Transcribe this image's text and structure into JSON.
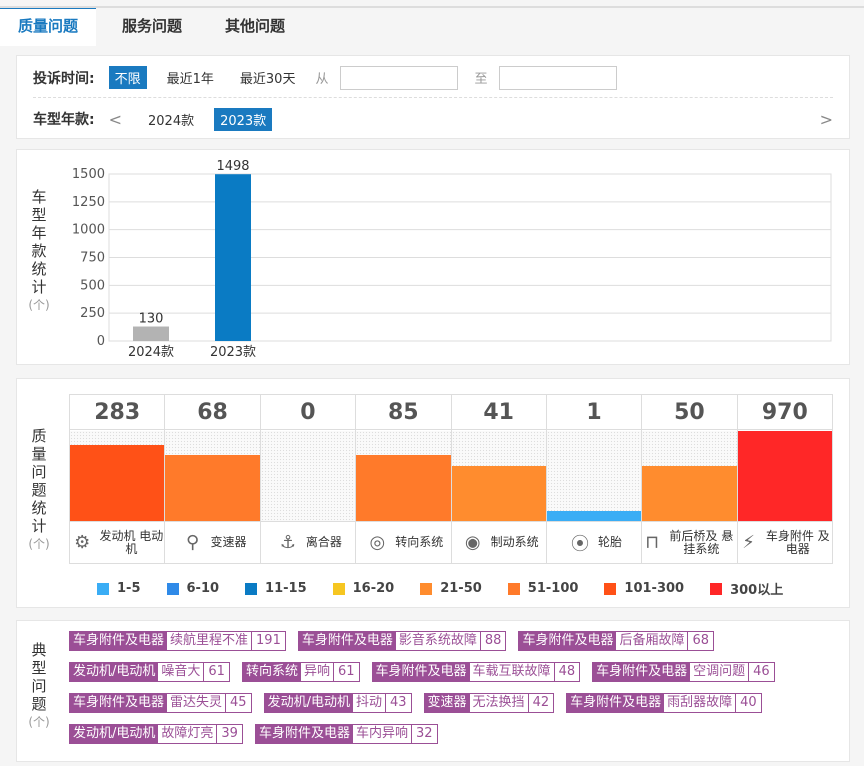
{
  "tabs": [
    "质量问题",
    "服务问题",
    "其他问题"
  ],
  "filter": {
    "time_label": "投诉时间:",
    "time_options": [
      "不限",
      "最近1年",
      "最近30天"
    ],
    "from_label": "从",
    "to_label": "至",
    "from_value": "",
    "to_value": "",
    "year_label": "车型年款:",
    "prev_arrow": "<",
    "next_arrow": ">",
    "years": [
      "2024款",
      "2023款"
    ]
  },
  "year_stats": {
    "label": [
      "车",
      "型",
      "年",
      "款",
      "统",
      "计"
    ],
    "unit": "(个)"
  },
  "chart_data": {
    "type": "bar",
    "categories": [
      "2024款",
      "2023款"
    ],
    "values": [
      130,
      1498
    ],
    "ylim": [
      0,
      1500
    ],
    "yticks": [
      0,
      250,
      500,
      750,
      1000,
      1250,
      1500
    ],
    "colors": [
      "#b3b3b3",
      "#0a7bc4"
    ]
  },
  "quality": {
    "label": [
      "质",
      "量",
      "问",
      "题",
      "统",
      "计"
    ],
    "unit": "(个)",
    "items": [
      {
        "count": "283",
        "name": "发动机 电动机",
        "icon": "engine-icon",
        "glyph": "⚙",
        "level": 0.85,
        "color": "#ff5117"
      },
      {
        "count": "68",
        "name": "变速器",
        "icon": "gearbox-icon",
        "glyph": "⚲",
        "level": 0.73,
        "color": "#ff7a2a"
      },
      {
        "count": "0",
        "name": "离合器",
        "icon": "clutch-icon",
        "glyph": "⚓",
        "level": 0,
        "color": "#ff7a2a"
      },
      {
        "count": "85",
        "name": "转向系统",
        "icon": "steering-wheel-icon",
        "glyph": "◎",
        "level": 0.73,
        "color": "#ff7a2a"
      },
      {
        "count": "41",
        "name": "制动系统",
        "icon": "brake-icon",
        "glyph": "◉",
        "level": 0.61,
        "color": "#ff8c2e"
      },
      {
        "count": "1",
        "name": "轮胎",
        "icon": "tire-icon",
        "glyph": "⦿",
        "level": 0.11,
        "color": "#3aadf5"
      },
      {
        "count": "50",
        "name": "前后桥及 悬挂系统",
        "icon": "axle-icon",
        "glyph": "⊓",
        "level": 0.61,
        "color": "#ff8c2e"
      },
      {
        "count": "970",
        "name": "车身附件 及电器",
        "icon": "battery-icon",
        "glyph": "⚡",
        "level": 1.0,
        "color": "#ff2727"
      }
    ],
    "legend": [
      {
        "label": "1-5",
        "color": "#3aadf5"
      },
      {
        "label": "6-10",
        "color": "#2f8ae8"
      },
      {
        "label": "11-15",
        "color": "#0a7bc4"
      },
      {
        "label": "16-20",
        "color": "#f6c621"
      },
      {
        "label": "21-50",
        "color": "#ff8c2e"
      },
      {
        "label": "51-100",
        "color": "#ff7a2a"
      },
      {
        "label": "101-300",
        "color": "#ff5117"
      },
      {
        "label": "300以上",
        "color": "#ff2727"
      }
    ]
  },
  "typical": {
    "label": [
      "典",
      "型",
      "问",
      "题"
    ],
    "unit": "(个)",
    "rows": [
      [
        {
          "cat": "车身附件及电器",
          "issue": "续航里程不准",
          "count": "191"
        },
        {
          "cat": "车身附件及电器",
          "issue": "影音系统故障",
          "count": "88"
        },
        {
          "cat": "车身附件及电器",
          "issue": "后备厢故障",
          "count": "68"
        }
      ],
      [
        {
          "cat": "发动机/电动机",
          "issue": "噪音大",
          "count": "61"
        },
        {
          "cat": "转向系统",
          "issue": "异响",
          "count": "61"
        },
        {
          "cat": "车身附件及电器",
          "issue": "车载互联故障",
          "count": "48"
        },
        {
          "cat": "车身附件及电器",
          "issue": "空调问题",
          "count": "46"
        }
      ],
      [
        {
          "cat": "车身附件及电器",
          "issue": "雷达失灵",
          "count": "45"
        },
        {
          "cat": "发动机/电动机",
          "issue": "抖动",
          "count": "43"
        },
        {
          "cat": "变速器",
          "issue": "无法换挡",
          "count": "42"
        },
        {
          "cat": "车身附件及电器",
          "issue": "雨刮器故障",
          "count": "40"
        }
      ],
      [
        {
          "cat": "发动机/电动机",
          "issue": "故障灯亮",
          "count": "39"
        },
        {
          "cat": "车身附件及电器",
          "issue": "车内异响",
          "count": "32"
        }
      ]
    ]
  }
}
